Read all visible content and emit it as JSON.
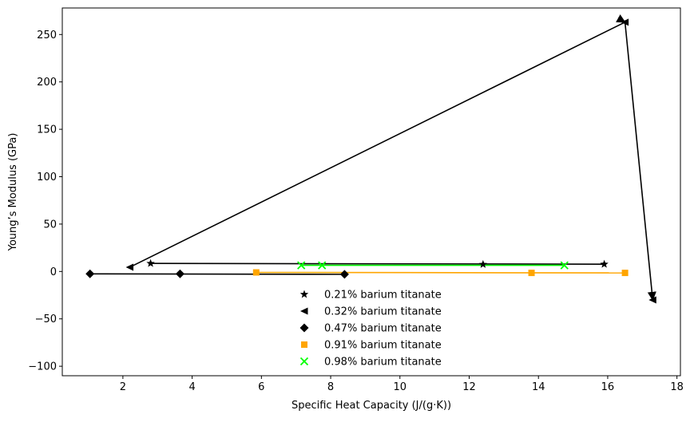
{
  "chart_data": {
    "type": "scatter",
    "title": "",
    "xlabel": "Specific Heat Capacity (J/(g·K))",
    "ylabel": "Young’s Modulus (GPa)",
    "xlim": [
      0.25,
      18.1
    ],
    "ylim": [
      -110,
      278
    ],
    "x_ticks": [
      2,
      4,
      6,
      8,
      10,
      12,
      14,
      16,
      18
    ],
    "y_ticks": [
      -100,
      -50,
      0,
      50,
      100,
      150,
      200,
      250
    ],
    "x_tick_labels": [
      "2",
      "4",
      "6",
      "8",
      "10",
      "12",
      "14",
      "16",
      "18"
    ],
    "y_tick_labels": [
      "−100",
      "−50",
      "0",
      "50",
      "100",
      "150",
      "200",
      "250"
    ],
    "grid": false,
    "legend_position": "lower-center",
    "series": [
      {
        "name": "0.21% barium titanate",
        "marker": "star",
        "color": "#000000",
        "points": [
          [
            2.8,
            8.5
          ],
          [
            12.4,
            7.5
          ],
          [
            15.9,
            7.7
          ]
        ]
      },
      {
        "name": "0.32% barium titanate",
        "marker": "triangle-left",
        "color": "#000000",
        "points": [
          [
            2.2,
            4.5
          ],
          [
            16.5,
            263
          ],
          [
            17.3,
            -30
          ]
        ]
      },
      {
        "name": "0.47% barium titanate",
        "marker": "diamond",
        "color": "#000000",
        "points": [
          [
            1.05,
            -2.5
          ],
          [
            3.65,
            -2.5
          ],
          [
            8.4,
            -3
          ]
        ]
      },
      {
        "name": "0.91% barium titanate",
        "marker": "square",
        "color": "#FFA500",
        "points": [
          [
            5.85,
            -1
          ],
          [
            13.8,
            -1.5
          ],
          [
            16.5,
            -1.5
          ]
        ]
      },
      {
        "name": "0.98% barium titanate",
        "marker": "x",
        "color": "#00FF00",
        "points": [
          [
            7.15,
            6.5
          ],
          [
            7.75,
            6.5
          ],
          [
            14.75,
            6.5
          ]
        ]
      }
    ],
    "connectors": [
      {
        "color": "#000000",
        "path": [
          [
            2.8,
            8.5
          ],
          [
            15.9,
            7.7
          ]
        ]
      },
      {
        "color": "#000000",
        "arrow": true,
        "path": [
          [
            2.2,
            4.5
          ],
          [
            16.5,
            263
          ],
          [
            17.3,
            -30
          ]
        ]
      },
      {
        "color": "#000000",
        "path": [
          [
            1.05,
            -2.5
          ],
          [
            8.4,
            -3
          ]
        ]
      },
      {
        "color": "#FFA500",
        "path": [
          [
            5.85,
            -1
          ],
          [
            16.5,
            -1.5
          ]
        ]
      },
      {
        "color": "#00FF00",
        "path": [
          [
            7.15,
            6.5
          ],
          [
            14.75,
            6.5
          ]
        ]
      }
    ]
  }
}
